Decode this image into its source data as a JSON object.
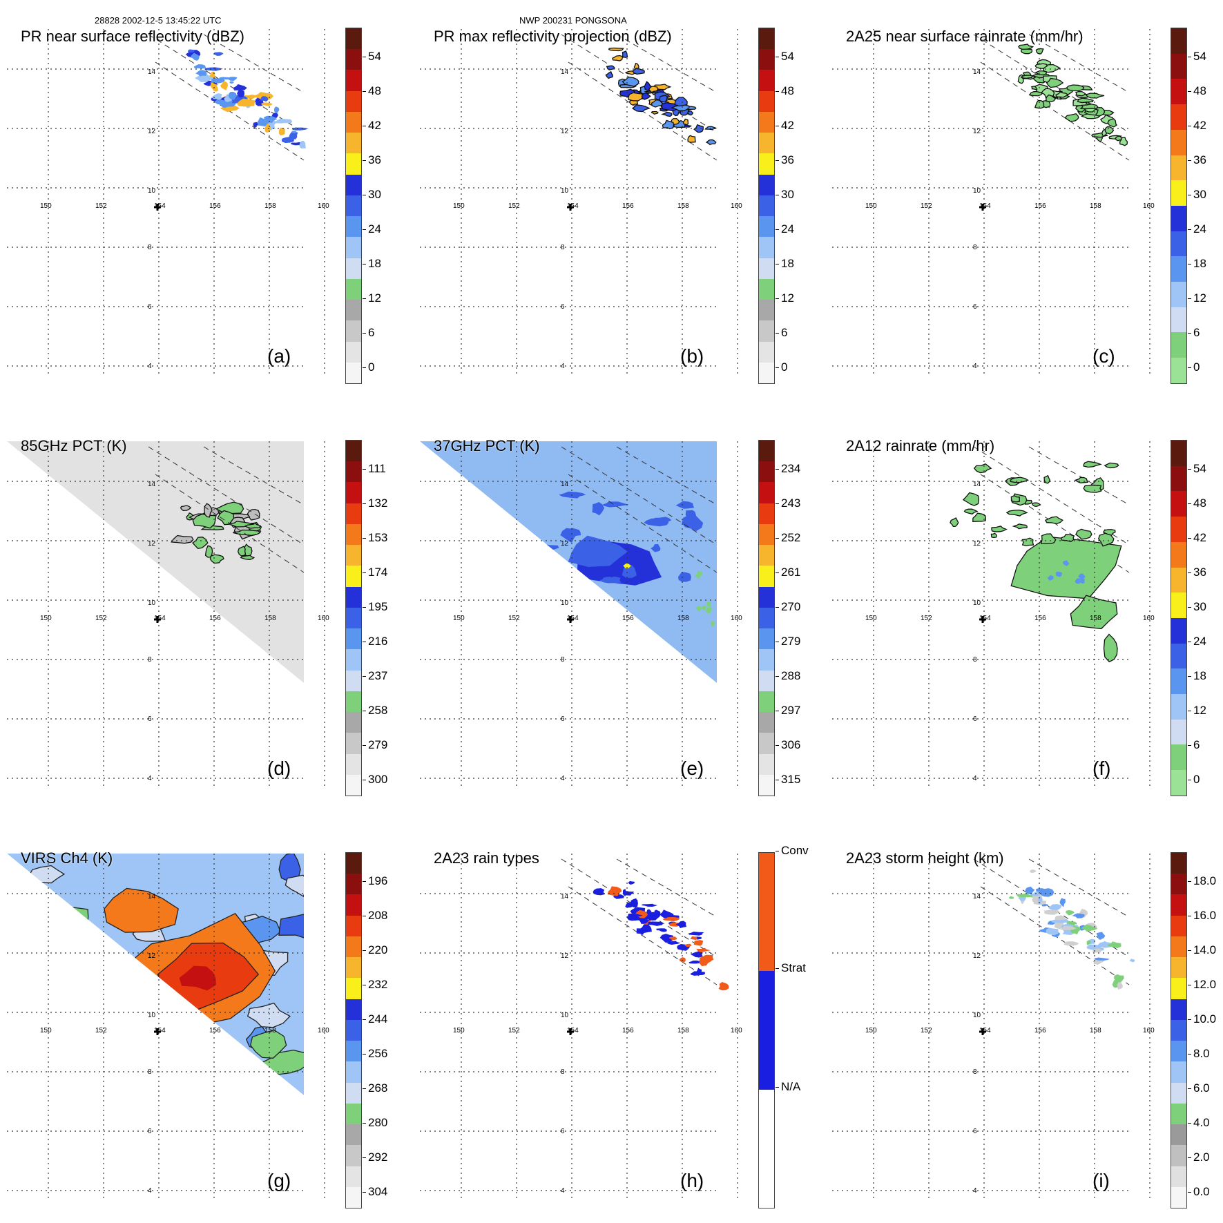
{
  "header": {
    "left": "28828 2002-12-5 13:45:22 UTC",
    "center": "NWP 200231 PONGSONA"
  },
  "map_axes": {
    "lon_labels": [
      "150",
      "152",
      "154",
      "156",
      "158",
      "160"
    ],
    "lat_labels": [
      "14",
      "12",
      "10",
      "8",
      "6",
      "4"
    ]
  },
  "panels": [
    {
      "id": "a",
      "title": "PR near surface reflectivity (dBZ)",
      "label": "(a)",
      "ticks": [
        "54",
        "48",
        "42",
        "36",
        "30",
        "24",
        "18",
        "12",
        "6",
        "0"
      ],
      "colors": [
        "#5a1a0e",
        "#8b0f0f",
        "#c41010",
        "#e83b10",
        "#f4791a",
        "#f7b52d",
        "#f9ef1a",
        "#2431d8",
        "#3a61e6",
        "#5a96f0",
        "#9ec5f5",
        "#cfdcf2",
        "#7fd07a",
        "#a8a8a8",
        "#c8c8c8",
        "#e4e4e4",
        "#f5f5f5"
      ]
    },
    {
      "id": "b",
      "title": "PR max reflectivity projection (dBZ)",
      "label": "(b)",
      "ticks": [
        "54",
        "48",
        "42",
        "36",
        "30",
        "24",
        "18",
        "12",
        "6",
        "0"
      ],
      "colors": [
        "#5a1a0e",
        "#8b0f0f",
        "#c41010",
        "#e83b10",
        "#f4791a",
        "#f7b52d",
        "#f9ef1a",
        "#2431d8",
        "#3a61e6",
        "#5a96f0",
        "#9ec5f5",
        "#cfdcf2",
        "#7fd07a",
        "#a8a8a8",
        "#c8c8c8",
        "#e4e4e4",
        "#f5f5f5"
      ]
    },
    {
      "id": "c",
      "title": "2A25 near surface rainrate (mm/hr)",
      "label": "(c)",
      "ticks": [
        "54",
        "48",
        "42",
        "36",
        "30",
        "24",
        "18",
        "12",
        "6",
        "0"
      ],
      "colors": [
        "#5a1a0e",
        "#8b0f0f",
        "#c41010",
        "#e83b10",
        "#f4791a",
        "#f7b52d",
        "#f9ef1a",
        "#2431d8",
        "#3a61e6",
        "#5a96f0",
        "#9ec5f5",
        "#cfdcf2",
        "#7fd07a",
        "#9be296"
      ]
    },
    {
      "id": "d",
      "title": "85GHz PCT (K)",
      "label": "(d)",
      "ticks": [
        "111",
        "132",
        "153",
        "174",
        "195",
        "216",
        "237",
        "258",
        "279",
        "300"
      ],
      "colors": [
        "#5a1a0e",
        "#8b0f0f",
        "#c41010",
        "#e83b10",
        "#f4791a",
        "#f7b52d",
        "#f9ef1a",
        "#2431d8",
        "#3a61e6",
        "#5a96f0",
        "#9ec5f5",
        "#cfdcf2",
        "#7fd07a",
        "#a8a8a8",
        "#c8c8c8",
        "#e4e4e4",
        "#f5f5f5"
      ]
    },
    {
      "id": "e",
      "title": "37GHz PCT (K)",
      "label": "(e)",
      "ticks": [
        "234",
        "243",
        "252",
        "261",
        "270",
        "279",
        "288",
        "297",
        "306",
        "315"
      ],
      "colors": [
        "#5a1a0e",
        "#8b0f0f",
        "#c41010",
        "#e83b10",
        "#f4791a",
        "#f7b52d",
        "#f9ef1a",
        "#2431d8",
        "#3a61e6",
        "#5a96f0",
        "#9ec5f5",
        "#cfdcf2",
        "#7fd07a",
        "#a8a8a8",
        "#c8c8c8",
        "#e4e4e4",
        "#f5f5f5"
      ]
    },
    {
      "id": "f",
      "title": "2A12 rainrate (mm/hr)",
      "label": "(f)",
      "ticks": [
        "54",
        "48",
        "42",
        "36",
        "30",
        "24",
        "18",
        "12",
        "6",
        "0"
      ],
      "colors": [
        "#5a1a0e",
        "#8b0f0f",
        "#c41010",
        "#e83b10",
        "#f4791a",
        "#f7b52d",
        "#f9ef1a",
        "#2431d8",
        "#3a61e6",
        "#5a96f0",
        "#9ec5f5",
        "#cfdcf2",
        "#7fd07a",
        "#9be296"
      ]
    },
    {
      "id": "g",
      "title": "VIRS Ch4 (K)",
      "label": "(g)",
      "ticks": [
        "196",
        "208",
        "220",
        "232",
        "244",
        "256",
        "268",
        "280",
        "292",
        "304"
      ],
      "colors": [
        "#5a1a0e",
        "#8b0f0f",
        "#c41010",
        "#e83b10",
        "#f4791a",
        "#f7b52d",
        "#f9ef1a",
        "#2431d8",
        "#3a61e6",
        "#5a96f0",
        "#9ec5f5",
        "#cfdcf2",
        "#7fd07a",
        "#a8a8a8",
        "#c8c8c8",
        "#e4e4e4",
        "#f5f5f5"
      ]
    },
    {
      "id": "h",
      "title": "2A23 rain types",
      "label": "(h)",
      "ticks": [
        "Conv",
        "Strat",
        "N/A"
      ],
      "colors": [
        "#f25a1a",
        "#1a1ee0",
        "#ffffff"
      ]
    },
    {
      "id": "i",
      "title": "2A23 storm height (km)",
      "label": "(i)",
      "ticks": [
        "18.0",
        "16.0",
        "14.0",
        "12.0",
        "10.0",
        "8.0",
        "6.0",
        "4.0",
        "2.0",
        "0.0"
      ],
      "colors": [
        "#5a1a0e",
        "#8b0f0f",
        "#c41010",
        "#e83b10",
        "#f4791a",
        "#f7b52d",
        "#f9ef1a",
        "#2431d8",
        "#3a61e6",
        "#5a96f0",
        "#9ec5f5",
        "#cfdcf2",
        "#7fd07a",
        "#9a9a9a",
        "#c0c0c0",
        "#e0e0e0",
        "#f6f6f6"
      ]
    }
  ]
}
